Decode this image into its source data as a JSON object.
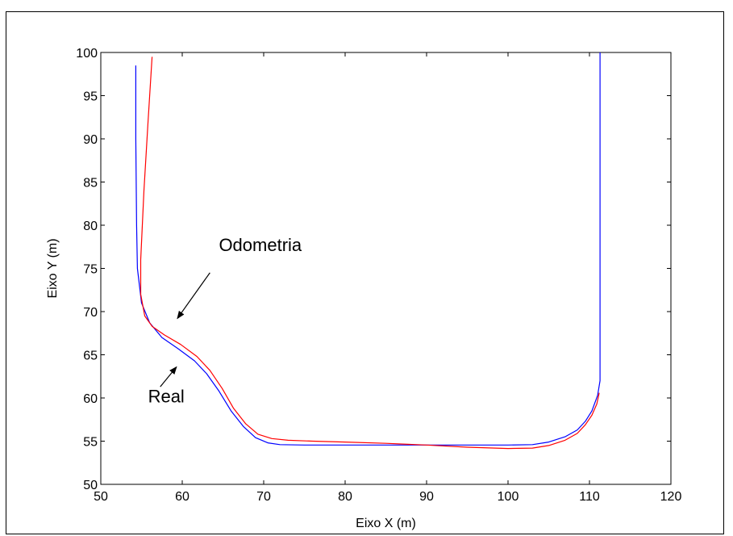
{
  "chart_data": {
    "type": "line",
    "title": "",
    "xlabel": "Eixo X (m)",
    "ylabel": "Eixo Y (m)",
    "xlim": [
      50,
      120
    ],
    "ylim": [
      50,
      100
    ],
    "xticks": [
      50,
      60,
      70,
      80,
      90,
      100,
      110,
      120
    ],
    "yticks": [
      50,
      55,
      60,
      65,
      70,
      75,
      80,
      85,
      90,
      95,
      100
    ],
    "grid": false,
    "series": [
      {
        "name": "Real",
        "color": "#0000ff",
        "x": [
          54.3,
          54.3,
          54.4,
          54.5,
          55.0,
          56.0,
          57.5,
          59.5,
          61.5,
          63.0,
          64.5,
          66.0,
          67.5,
          69.0,
          70.5,
          72.0,
          75.0,
          80.0,
          85.0,
          90.0,
          95.0,
          100.0,
          103.0,
          105.0,
          107.0,
          108.5,
          109.5,
          110.3,
          111.0,
          111.3,
          111.3,
          111.3
        ],
        "y": [
          98.5,
          90.0,
          80.0,
          75.0,
          71.0,
          68.7,
          67.0,
          65.7,
          64.3,
          62.8,
          60.8,
          58.5,
          56.7,
          55.4,
          54.8,
          54.6,
          54.55,
          54.55,
          54.55,
          54.55,
          54.55,
          54.55,
          54.6,
          54.9,
          55.5,
          56.3,
          57.3,
          58.5,
          60.3,
          62.0,
          80.0,
          100.0
        ]
      },
      {
        "name": "Odometria",
        "color": "#ff0000",
        "x": [
          56.3,
          55.8,
          55.3,
          54.9,
          54.9,
          55.4,
          56.3,
          57.8,
          59.8,
          61.8,
          63.4,
          64.9,
          66.3,
          67.8,
          69.3,
          71.0,
          73.0,
          76.0,
          80.0,
          85.0,
          90.0,
          95.0,
          100.0,
          103.0,
          105.0,
          107.0,
          108.5,
          109.5,
          110.3,
          110.9,
          111.2
        ],
        "y": [
          99.5,
          92.0,
          84.0,
          76.0,
          72.0,
          69.5,
          68.3,
          67.3,
          66.2,
          64.8,
          63.2,
          61.1,
          58.8,
          57.0,
          55.8,
          55.3,
          55.1,
          55.0,
          54.9,
          54.75,
          54.55,
          54.3,
          54.15,
          54.2,
          54.5,
          55.1,
          55.9,
          56.9,
          58.0,
          59.3,
          60.6
        ]
      }
    ],
    "annotations": [
      {
        "text": "Odometria",
        "x": 64.5,
        "y": 77.0,
        "arrow_from": [
          63.4,
          74.5
        ],
        "arrow_to": [
          59.4,
          69.2
        ]
      },
      {
        "text": "Real",
        "x": 55.8,
        "y": 59.5,
        "arrow_from": [
          57.3,
          61.3
        ],
        "arrow_to": [
          59.3,
          63.6
        ]
      }
    ]
  }
}
